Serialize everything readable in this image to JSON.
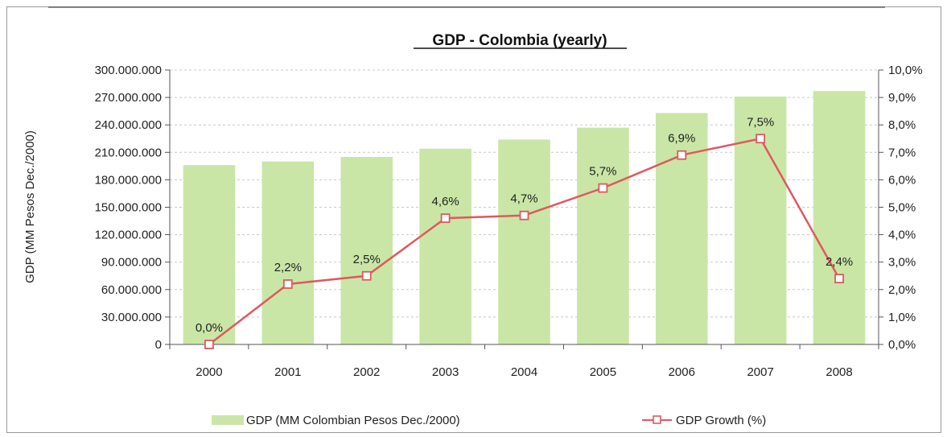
{
  "chart_data": {
    "type": "bar",
    "title": "GDP - Colombia (yearly)",
    "ylabel": "GDP (MM Pesos Dec./2000)",
    "y2label": "",
    "categories": [
      "2000",
      "2001",
      "2002",
      "2003",
      "2004",
      "2005",
      "2006",
      "2007",
      "2008"
    ],
    "series": [
      {
        "name": "GDP (MM Colombian Pesos Dec./2000)",
        "type": "bar",
        "axis": "left",
        "color": "#c9e6a6",
        "values": [
          196000000,
          200000000,
          205000000,
          214000000,
          224000000,
          237000000,
          253000000,
          271000000,
          277000000
        ]
      },
      {
        "name": "GDP Growth (%)",
        "type": "line",
        "axis": "right",
        "color": "#e0585e",
        "values": [
          0.0,
          2.2,
          2.5,
          4.6,
          4.7,
          5.7,
          6.9,
          7.5,
          2.4
        ],
        "data_labels": [
          "0,0%",
          "2,2%",
          "2,5%",
          "4,6%",
          "4,7%",
          "5,7%",
          "6,9%",
          "7,5%",
          "2,4%"
        ]
      }
    ],
    "ylim": [
      0,
      300000000
    ],
    "y2lim": [
      0,
      10
    ],
    "yticks": [
      "0",
      "30.000.000",
      "60.000.000",
      "90.000.000",
      "120.000.000",
      "150.000.000",
      "180.000.000",
      "210.000.000",
      "240.000.000",
      "270.000.000",
      "300.000.000"
    ],
    "y2ticks": [
      "0,0%",
      "1,0%",
      "2,0%",
      "3,0%",
      "4,0%",
      "5,0%",
      "6,0%",
      "7,0%",
      "8,0%",
      "9,0%",
      "10,0%"
    ],
    "grid": true,
    "legend_position": "bottom"
  }
}
